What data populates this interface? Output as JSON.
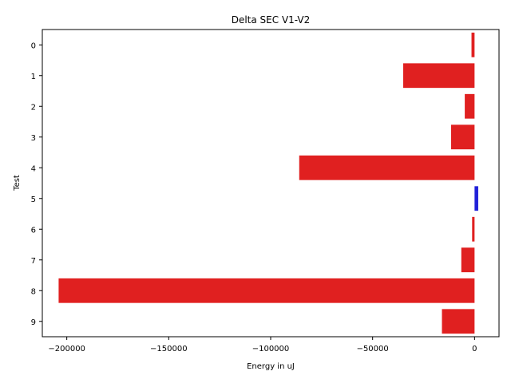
{
  "chart_data": {
    "type": "bar",
    "orientation": "horizontal",
    "title": "Delta SEC V1-V2",
    "xlabel": "Energy in uJ",
    "ylabel": "Test",
    "categories": [
      "0",
      "1",
      "2",
      "3",
      "4",
      "5",
      "6",
      "7",
      "8",
      "9"
    ],
    "values": [
      -1500,
      -35000,
      -4800,
      -11500,
      -86000,
      1800,
      -1200,
      -6500,
      -204000,
      -16000
    ],
    "xlim": [
      -212000,
      12000
    ],
    "xticks": [
      -200000,
      -150000,
      -100000,
      -50000,
      0
    ],
    "xtick_labels": [
      "−200000",
      "−150000",
      "−100000",
      "−50000",
      "0"
    ],
    "colors": {
      "negative": "#e02020",
      "positive": "#2020d8"
    },
    "grid": false,
    "legend": "none"
  }
}
